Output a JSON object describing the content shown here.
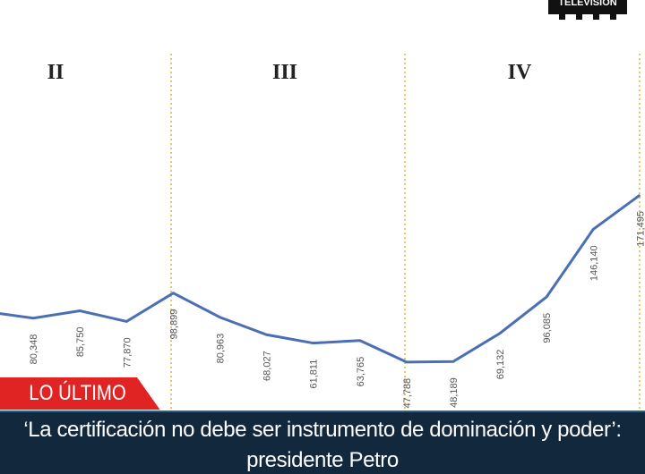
{
  "chart_data": {
    "type": "line",
    "categories": [
      null,
      null,
      null,
      null,
      null,
      null,
      null,
      null,
      null,
      null,
      null,
      null,
      null,
      null,
      null
    ],
    "values": [
      85000,
      80348,
      85750,
      77870,
      98899,
      80963,
      68027,
      61811,
      63765,
      47788,
      48189,
      69132,
      96085,
      146140,
      171495
    ],
    "value_labels": [
      null,
      "80,348",
      "85,750",
      "77,870",
      "98,899",
      "80,963",
      "68,027",
      "61,811",
      "63,765",
      "47,788",
      "48,189",
      "69,132",
      "96,085",
      "146,140",
      "171,495"
    ],
    "color": "#4a6fb5",
    "ylim": [
      0,
      300000
    ],
    "sections": [
      "II",
      "III",
      "IV"
    ]
  },
  "banner": {
    "tag": "LO ÚLTIMO",
    "headline": "‘La certificación no debe ser instrumento de dominación y poder’: presidente Petro"
  },
  "logo": "TELEVISIÓN"
}
